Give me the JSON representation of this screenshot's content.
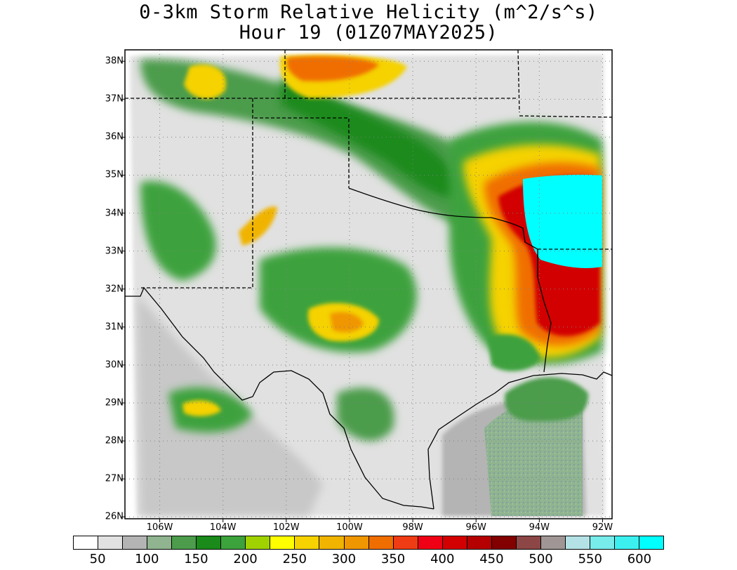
{
  "title_line1": "0-3km Storm Relative Helicity (m^2/s^s)",
  "title_line2": "Hour 19 (01Z07MAY2025)",
  "lat_labels": [
    {
      "lat": 38,
      "text": "38N"
    },
    {
      "lat": 37,
      "text": "37N"
    },
    {
      "lat": 36,
      "text": "36N"
    },
    {
      "lat": 35,
      "text": "35N"
    },
    {
      "lat": 34,
      "text": "34N"
    },
    {
      "lat": 33,
      "text": "33N"
    },
    {
      "lat": 32,
      "text": "32N"
    },
    {
      "lat": 31,
      "text": "31N"
    },
    {
      "lat": 30,
      "text": "30N"
    },
    {
      "lat": 29,
      "text": "29N"
    },
    {
      "lat": 28,
      "text": "28N"
    },
    {
      "lat": 27,
      "text": "27N"
    },
    {
      "lat": 26,
      "text": "26N"
    }
  ],
  "lon_labels": [
    {
      "lon": -106,
      "text": "106W"
    },
    {
      "lon": -104,
      "text": "104W"
    },
    {
      "lon": -102,
      "text": "102W"
    },
    {
      "lon": -100,
      "text": "100W"
    },
    {
      "lon": -98,
      "text": "98W"
    },
    {
      "lon": -96,
      "text": "96W"
    },
    {
      "lon": -94,
      "text": "94W"
    },
    {
      "lon": -92,
      "text": "92W"
    }
  ],
  "colorbar": {
    "colors": [
      "#ffffff",
      "#e1e1e1",
      "#b4b4b4",
      "#8fb48f",
      "#4c9c4c",
      "#1a8a1a",
      "#3ca23c",
      "#a0d200",
      "#ffff00",
      "#f5d200",
      "#f0b400",
      "#f09600",
      "#f06e00",
      "#f03c14",
      "#f00014",
      "#d20000",
      "#b40000",
      "#820000",
      "#8c4646",
      "#a09696",
      "#b4e1e6",
      "#78ebeb",
      "#3cf0f0",
      "#00ffff"
    ],
    "labels": [
      {
        "index": 1,
        "text": "50"
      },
      {
        "index": 3,
        "text": "100"
      },
      {
        "index": 5,
        "text": "150"
      },
      {
        "index": 7,
        "text": "200"
      },
      {
        "index": 9,
        "text": "250"
      },
      {
        "index": 11,
        "text": "300"
      },
      {
        "index": 13,
        "text": "350"
      },
      {
        "index": 15,
        "text": "400"
      },
      {
        "index": 17,
        "text": "450"
      },
      {
        "index": 19,
        "text": "500"
      },
      {
        "index": 21,
        "text": "550"
      },
      {
        "index": 23,
        "text": "600"
      }
    ]
  },
  "map_extent": {
    "lon_min": -107.1,
    "lon_max": -91.7,
    "lat_min": 25.95,
    "lat_max": 38.3
  },
  "colors": {
    "land_outline": "#000000",
    "grid": "#808080"
  }
}
